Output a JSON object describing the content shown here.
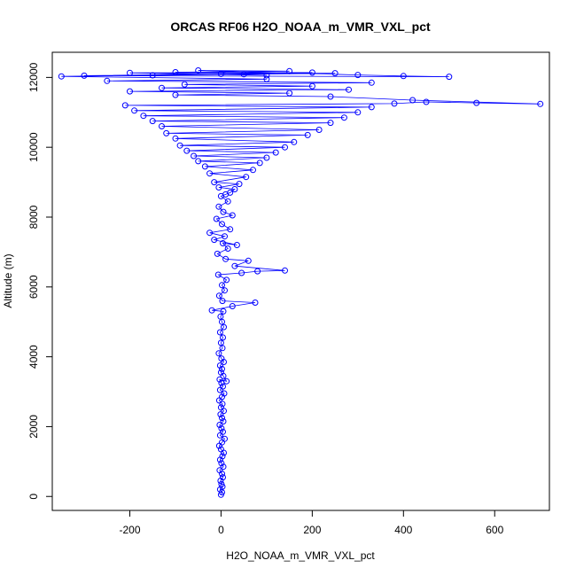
{
  "chart_data": {
    "type": "scatter",
    "title": "ORCAS RF06 H2O_NOAA_m_VMR_VXL_pct",
    "xlabel": "H2O_NOAA_m_VMR_VXL_pct",
    "ylabel": "Altitude (m)",
    "xlim": [
      -370,
      720
    ],
    "ylim": [
      -400,
      12720
    ],
    "xticks": [
      -200,
      0,
      200,
      400,
      600
    ],
    "yticks": [
      0,
      2000,
      4000,
      6000,
      8000,
      10000,
      12000
    ],
    "xtick_labels": [
      "-200",
      "0",
      "200",
      "400",
      "600"
    ],
    "ytick_labels": [
      "0",
      "2000",
      "4000",
      "6000",
      "8000",
      "10000",
      "12000"
    ],
    "grid": false,
    "legend": "none",
    "series": [
      {
        "color": "#0000ff",
        "marker": "open-circle",
        "line": true,
        "points": [
          [
            0,
            50
          ],
          [
            2,
            120
          ],
          [
            -2,
            200
          ],
          [
            3,
            280
          ],
          [
            1,
            350
          ],
          [
            -1,
            450
          ],
          [
            4,
            550
          ],
          [
            2,
            650
          ],
          [
            -3,
            750
          ],
          [
            5,
            850
          ],
          [
            1,
            950
          ],
          [
            -2,
            1050
          ],
          [
            3,
            1150
          ],
          [
            6,
            1250
          ],
          [
            0,
            1350
          ],
          [
            -4,
            1450
          ],
          [
            2,
            1550
          ],
          [
            8,
            1650
          ],
          [
            -2,
            1750
          ],
          [
            4,
            1850
          ],
          [
            1,
            1950
          ],
          [
            -3,
            2050
          ],
          [
            5,
            2150
          ],
          [
            2,
            2250
          ],
          [
            -1,
            2350
          ],
          [
            6,
            2450
          ],
          [
            0,
            2550
          ],
          [
            3,
            2650
          ],
          [
            -4,
            2750
          ],
          [
            2,
            2850
          ],
          [
            7,
            2950
          ],
          [
            -2,
            3050
          ],
          [
            4,
            3150
          ],
          [
            1,
            3250
          ],
          [
            -3,
            3350
          ],
          [
            12,
            3300
          ],
          [
            5,
            3450
          ],
          [
            0,
            3550
          ],
          [
            2,
            3650
          ],
          [
            -2,
            3750
          ],
          [
            6,
            3850
          ],
          [
            1,
            3950
          ],
          [
            -5,
            4100
          ],
          [
            3,
            4250
          ],
          [
            0,
            4400
          ],
          [
            4,
            4550
          ],
          [
            -2,
            4700
          ],
          [
            6,
            4850
          ],
          [
            2,
            5000
          ],
          [
            -1,
            5150
          ],
          [
            5,
            5300
          ],
          [
            -20,
            5330
          ],
          [
            25,
            5450
          ],
          [
            75,
            5550
          ],
          [
            3,
            5600
          ],
          [
            -4,
            5750
          ],
          [
            8,
            5900
          ],
          [
            2,
            6050
          ],
          [
            12,
            6200
          ],
          [
            -6,
            6350
          ],
          [
            45,
            6400
          ],
          [
            80,
            6450
          ],
          [
            140,
            6470
          ],
          [
            30,
            6600
          ],
          [
            60,
            6750
          ],
          [
            10,
            6800
          ],
          [
            -8,
            6950
          ],
          [
            15,
            7100
          ],
          [
            4,
            7250
          ],
          [
            35,
            7200
          ],
          [
            -15,
            7350
          ],
          [
            8,
            7450
          ],
          [
            -25,
            7550
          ],
          [
            20,
            7650
          ],
          [
            2,
            7800
          ],
          [
            -10,
            7950
          ],
          [
            25,
            8050
          ],
          [
            5,
            8150
          ],
          [
            -5,
            8300
          ],
          [
            15,
            8450
          ],
          [
            0,
            8600
          ],
          [
            10,
            8650
          ],
          [
            20,
            8700
          ],
          [
            30,
            8800
          ],
          [
            -5,
            8850
          ],
          [
            40,
            8950
          ],
          [
            -15,
            9000
          ],
          [
            55,
            9150
          ],
          [
            -25,
            9250
          ],
          [
            70,
            9350
          ],
          [
            -35,
            9450
          ],
          [
            85,
            9550
          ],
          [
            -50,
            9600
          ],
          [
            100,
            9700
          ],
          [
            -60,
            9750
          ],
          [
            120,
            9850
          ],
          [
            -75,
            9900
          ],
          [
            140,
            10000
          ],
          [
            -90,
            10050
          ],
          [
            160,
            10150
          ],
          [
            -100,
            10250
          ],
          [
            190,
            10350
          ],
          [
            -120,
            10400
          ],
          [
            215,
            10500
          ],
          [
            -130,
            10600
          ],
          [
            240,
            10700
          ],
          [
            -150,
            10750
          ],
          [
            270,
            10850
          ],
          [
            -170,
            10900
          ],
          [
            300,
            11000
          ],
          [
            -190,
            11050
          ],
          [
            330,
            11150
          ],
          [
            -210,
            11200
          ],
          [
            380,
            11250
          ],
          [
            450,
            11300
          ],
          [
            560,
            11270
          ],
          [
            700,
            11240
          ],
          [
            420,
            11350
          ],
          [
            240,
            11450
          ],
          [
            -100,
            11500
          ],
          [
            150,
            11550
          ],
          [
            -200,
            11600
          ],
          [
            280,
            11650
          ],
          [
            -130,
            11700
          ],
          [
            200,
            11750
          ],
          [
            -80,
            11800
          ],
          [
            330,
            11850
          ],
          [
            -250,
            11900
          ],
          [
            100,
            11950
          ],
          [
            -350,
            12030
          ],
          [
            -150,
            12060
          ],
          [
            50,
            12090
          ],
          [
            250,
            12120
          ],
          [
            -100,
            12150
          ],
          [
            150,
            12180
          ],
          [
            -50,
            12200
          ],
          [
            300,
            12070
          ],
          [
            400,
            12040
          ],
          [
            500,
            12020
          ],
          [
            -300,
            12050
          ],
          [
            0,
            12100
          ],
          [
            200,
            12140
          ],
          [
            -200,
            12130
          ],
          [
            100,
            12060
          ]
        ]
      }
    ]
  }
}
